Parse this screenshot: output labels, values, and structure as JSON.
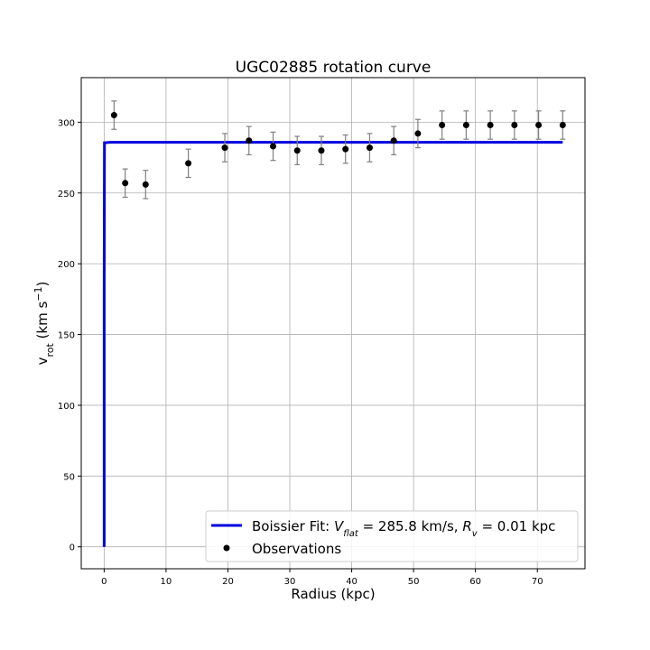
{
  "chart_data": {
    "type": "scatter",
    "title": "UGC02885 rotation curve",
    "xlabel": "Radius (kpc)",
    "ylabel": "v_rot (km s^-1)",
    "xlim": [
      -3.7,
      77.7
    ],
    "ylim": [
      -15.5,
      331.5
    ],
    "xticks": [
      0,
      10,
      20,
      30,
      40,
      50,
      60,
      70
    ],
    "yticks": [
      0,
      50,
      100,
      150,
      200,
      250,
      300
    ],
    "grid": true,
    "legend_position": "lower right",
    "colors": {
      "fit": "#0000dd",
      "observations": "#000000",
      "errorbars": "#808080",
      "grid": "#b0b0b0"
    },
    "series": [
      {
        "name": "Boissier Fit: V_flat = 285.8 km/s, R_v = 0.01 kpc",
        "kind": "line",
        "x": [
          0.0,
          0.01,
          0.05,
          1,
          10,
          30,
          50,
          74.1
        ],
        "y": [
          0.0,
          180.6,
          285.5,
          285.8,
          285.8,
          285.8,
          285.8,
          285.8
        ]
      },
      {
        "name": "Observations",
        "kind": "errorbar",
        "x": [
          1.6,
          3.4,
          6.7,
          13.6,
          19.5,
          23.4,
          27.3,
          31.2,
          35.1,
          39.0,
          42.9,
          46.8,
          50.7,
          54.6,
          58.5,
          62.4,
          66.3,
          70.2,
          74.1
        ],
        "y": [
          305,
          257,
          256,
          271,
          282,
          287,
          283,
          280,
          280,
          281,
          282,
          287,
          292,
          298,
          298,
          298,
          298,
          298,
          298
        ],
        "err": [
          10,
          10,
          10,
          10,
          10,
          10,
          10,
          10,
          10,
          10,
          10,
          10,
          10,
          10,
          10,
          10,
          10,
          10,
          10
        ]
      }
    ]
  },
  "legend": {
    "fit_label": "Boissier Fit: V_flat = 285.8 km/s, R_v = 0.01 kpc",
    "obs_label": "Observations"
  }
}
